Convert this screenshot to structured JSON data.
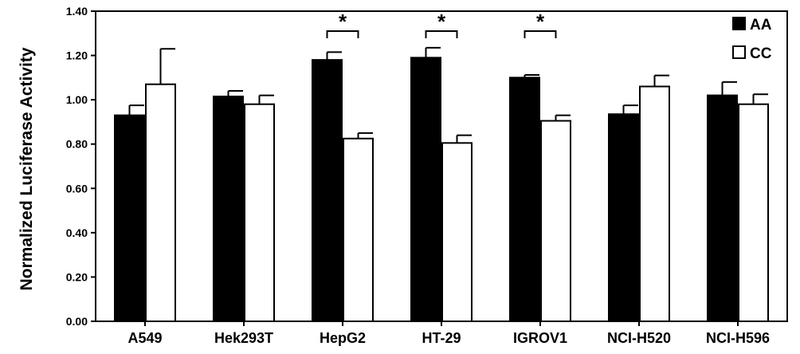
{
  "chart_data": {
    "type": "bar",
    "title": "",
    "xlabel": "",
    "ylabel": "Normalized Luciferase Activity",
    "ylim": [
      0,
      1.4
    ],
    "yticks": [
      "0.00",
      "0.20",
      "0.40",
      "0.60",
      "0.80",
      "1.00",
      "1.20",
      "1.40"
    ],
    "ytick_values": [
      0,
      0.2,
      0.4,
      0.6,
      0.8,
      1.0,
      1.2,
      1.4
    ],
    "grid": false,
    "legend_position": "top-right",
    "categories": [
      "A549",
      "Hek293T",
      "HepG2",
      "HT-29",
      "IGROV1",
      "NCI-H520",
      "NCI-H596"
    ],
    "series": [
      {
        "name": "AA",
        "color": "#000000",
        "values": [
          0.93,
          1.015,
          1.18,
          1.19,
          1.1,
          0.935,
          1.02
        ],
        "errors": [
          0.045,
          0.025,
          0.035,
          0.045,
          0.012,
          0.04,
          0.06
        ]
      },
      {
        "name": "CC",
        "color": "#ffffff",
        "values": [
          1.07,
          0.98,
          0.825,
          0.805,
          0.905,
          1.06,
          0.98
        ],
        "errors": [
          0.16,
          0.04,
          0.025,
          0.035,
          0.025,
          0.05,
          0.045
        ]
      }
    ],
    "annotations": [
      {
        "category": "HepG2",
        "label": "*"
      },
      {
        "category": "HT-29",
        "label": "*"
      },
      {
        "category": "IGROV1",
        "label": "*"
      }
    ]
  }
}
